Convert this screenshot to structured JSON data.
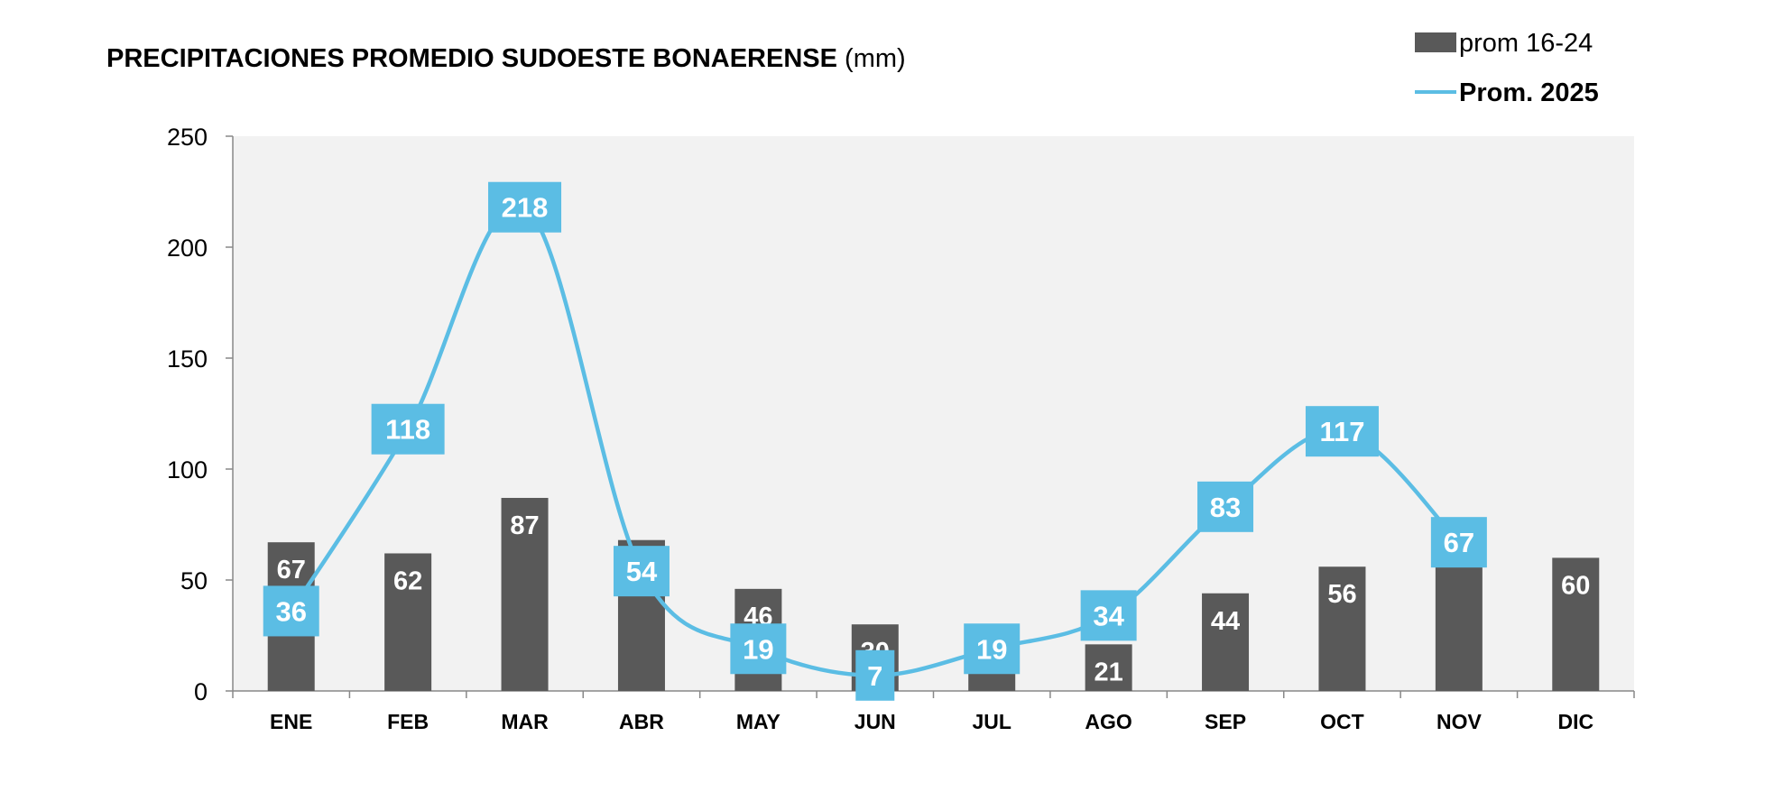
{
  "chart_data": {
    "type": "bar",
    "title_bold": "PRECIPITACIONES PROMEDIO SUDOESTE BONAERENSE",
    "title_unit": "(mm)",
    "xlabel": "",
    "ylabel": "",
    "categories": [
      "ENE",
      "FEB",
      "MAR",
      "ABR",
      "MAY",
      "JUN",
      "JUL",
      "AGO",
      "SEP",
      "OCT",
      "NOV",
      "DIC"
    ],
    "ylim": [
      0,
      250
    ],
    "yticks": [
      0,
      50,
      100,
      150,
      200,
      250
    ],
    "grid": false,
    "legend_position": "top-right",
    "series": [
      {
        "name": "prom 16-24",
        "type": "bar",
        "color": "#595959",
        "values": [
          67,
          62,
          87,
          68,
          46,
          30,
          26,
          21,
          44,
          56,
          77,
          60
        ],
        "labels": [
          "67",
          "62",
          "87",
          "68",
          "46",
          "30",
          "",
          "21",
          "44",
          "56",
          "77",
          "60"
        ]
      },
      {
        "name": "Prom. 2025",
        "type": "line",
        "smooth": true,
        "color": "#5bbde4",
        "values": [
          36,
          118,
          218,
          54,
          19,
          7,
          19,
          34,
          83,
          117,
          67,
          null
        ],
        "labels": [
          "36",
          "118",
          "218",
          "54",
          "19",
          "7",
          "19",
          "34",
          "83",
          "117",
          "67",
          ""
        ]
      }
    ]
  },
  "colors": {
    "plot_background": "#f2f2f2",
    "axis": "#888888"
  }
}
